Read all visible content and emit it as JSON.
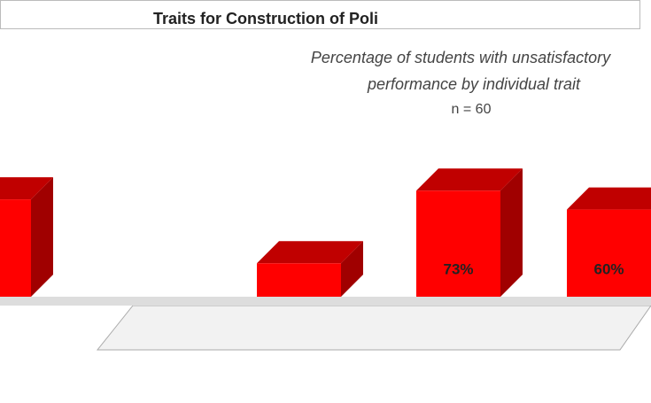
{
  "chart_data": {
    "type": "bar3d",
    "title": "Traits for Construction of Poli",
    "subtitle": "Percentage of students with unsatisfactory performance by individual trait",
    "note": "n = 60",
    "categories": [
      null,
      null,
      null,
      null
    ],
    "values": [
      67,
      23,
      73,
      60
    ],
    "value_labels": [
      null,
      null,
      "73%",
      "60%"
    ],
    "color": "#ff0000"
  }
}
